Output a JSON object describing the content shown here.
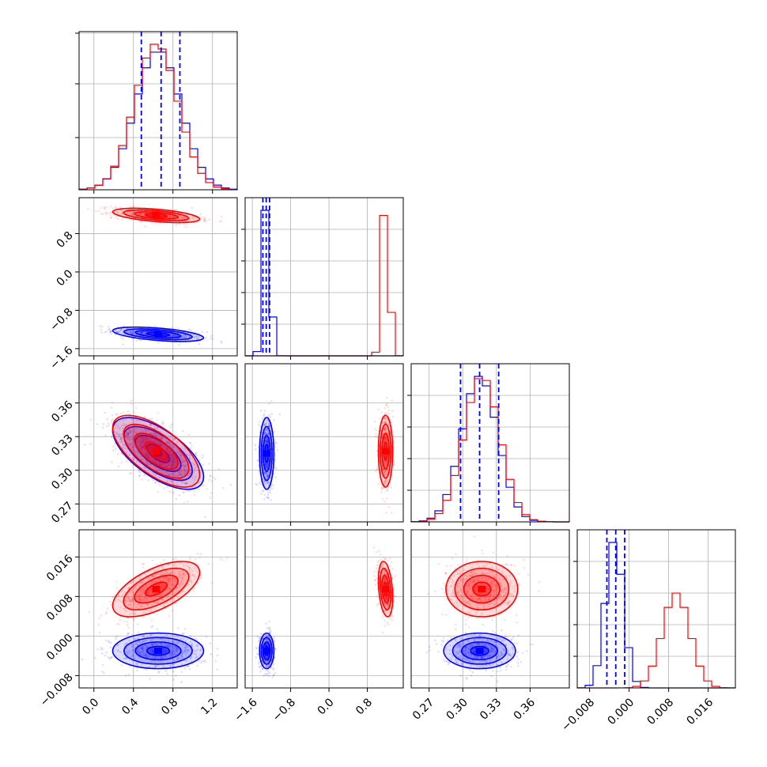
{
  "chart_data": {
    "type": "corner",
    "grid": true,
    "colors": {
      "run_a": "#0000ff",
      "run_b": "#ff0000"
    },
    "params": [
      {
        "range": [
          -0.15,
          1.45
        ],
        "ticks": [
          0.0,
          0.4,
          0.8,
          1.2
        ],
        "tick_labels": [
          "0.0",
          "0.4",
          "0.8",
          "1.2"
        ]
      },
      {
        "range": [
          -1.75,
          1.55
        ],
        "ticks": [
          -1.6,
          -0.8,
          0.0,
          0.8
        ],
        "tick_labels": [
          "−1.6",
          "−0.8",
          "0.0",
          "0.8"
        ]
      },
      {
        "range": [
          0.254,
          0.395
        ],
        "ticks": [
          0.27,
          0.3,
          0.33,
          0.36
        ],
        "tick_labels": [
          "0.27",
          "0.30",
          "0.33",
          "0.36"
        ]
      },
      {
        "range": [
          -0.0105,
          0.0215
        ],
        "ticks": [
          -0.008,
          0.0,
          0.008,
          0.016
        ],
        "tick_labels": [
          "−0.008",
          "0.000",
          "0.008",
          "0.016"
        ]
      }
    ],
    "diagonal_hist_ticks": [
      [
        0.33,
        0.67,
        0.99
      ],
      [
        0.2,
        0.4,
        0.6,
        0.8
      ],
      [
        0.2,
        0.4,
        0.6,
        0.8
      ],
      [
        0.2,
        0.4,
        0.6,
        0.8
      ]
    ],
    "quantiles_run_a": [
      [
        0.48,
        0.68,
        0.87
      ],
      [
        -1.38,
        -1.31,
        -1.24
      ],
      [
        0.298,
        0.315,
        0.332
      ],
      [
        -0.0045,
        -0.0027,
        -0.0009
      ]
    ],
    "series": [
      {
        "key": "run_a",
        "color": "#0000ff",
        "mean": [
          0.65,
          -1.3,
          0.315,
          -0.003
        ],
        "std": [
          0.23,
          0.075,
          0.016,
          0.0018
        ],
        "corr": [
          [
            1,
            -0.5,
            -0.65,
            0.0
          ],
          [
            -0.5,
            1,
            0.0,
            0.0
          ],
          [
            -0.65,
            0.0,
            1,
            0.0
          ],
          [
            0.0,
            0.0,
            0.0,
            1
          ]
        ]
      },
      {
        "key": "run_b",
        "color": "#ff0000",
        "mean": [
          0.63,
          1.18,
          0.317,
          0.0095
        ],
        "std": [
          0.22,
          0.075,
          0.016,
          0.0028
        ],
        "corr": [
          [
            1,
            -0.5,
            -0.65,
            0.6
          ],
          [
            -0.5,
            1,
            0.0,
            -0.3
          ],
          [
            -0.65,
            0.0,
            1,
            0.0
          ],
          [
            0.6,
            -0.3,
            0.0,
            1
          ]
        ]
      }
    ]
  }
}
